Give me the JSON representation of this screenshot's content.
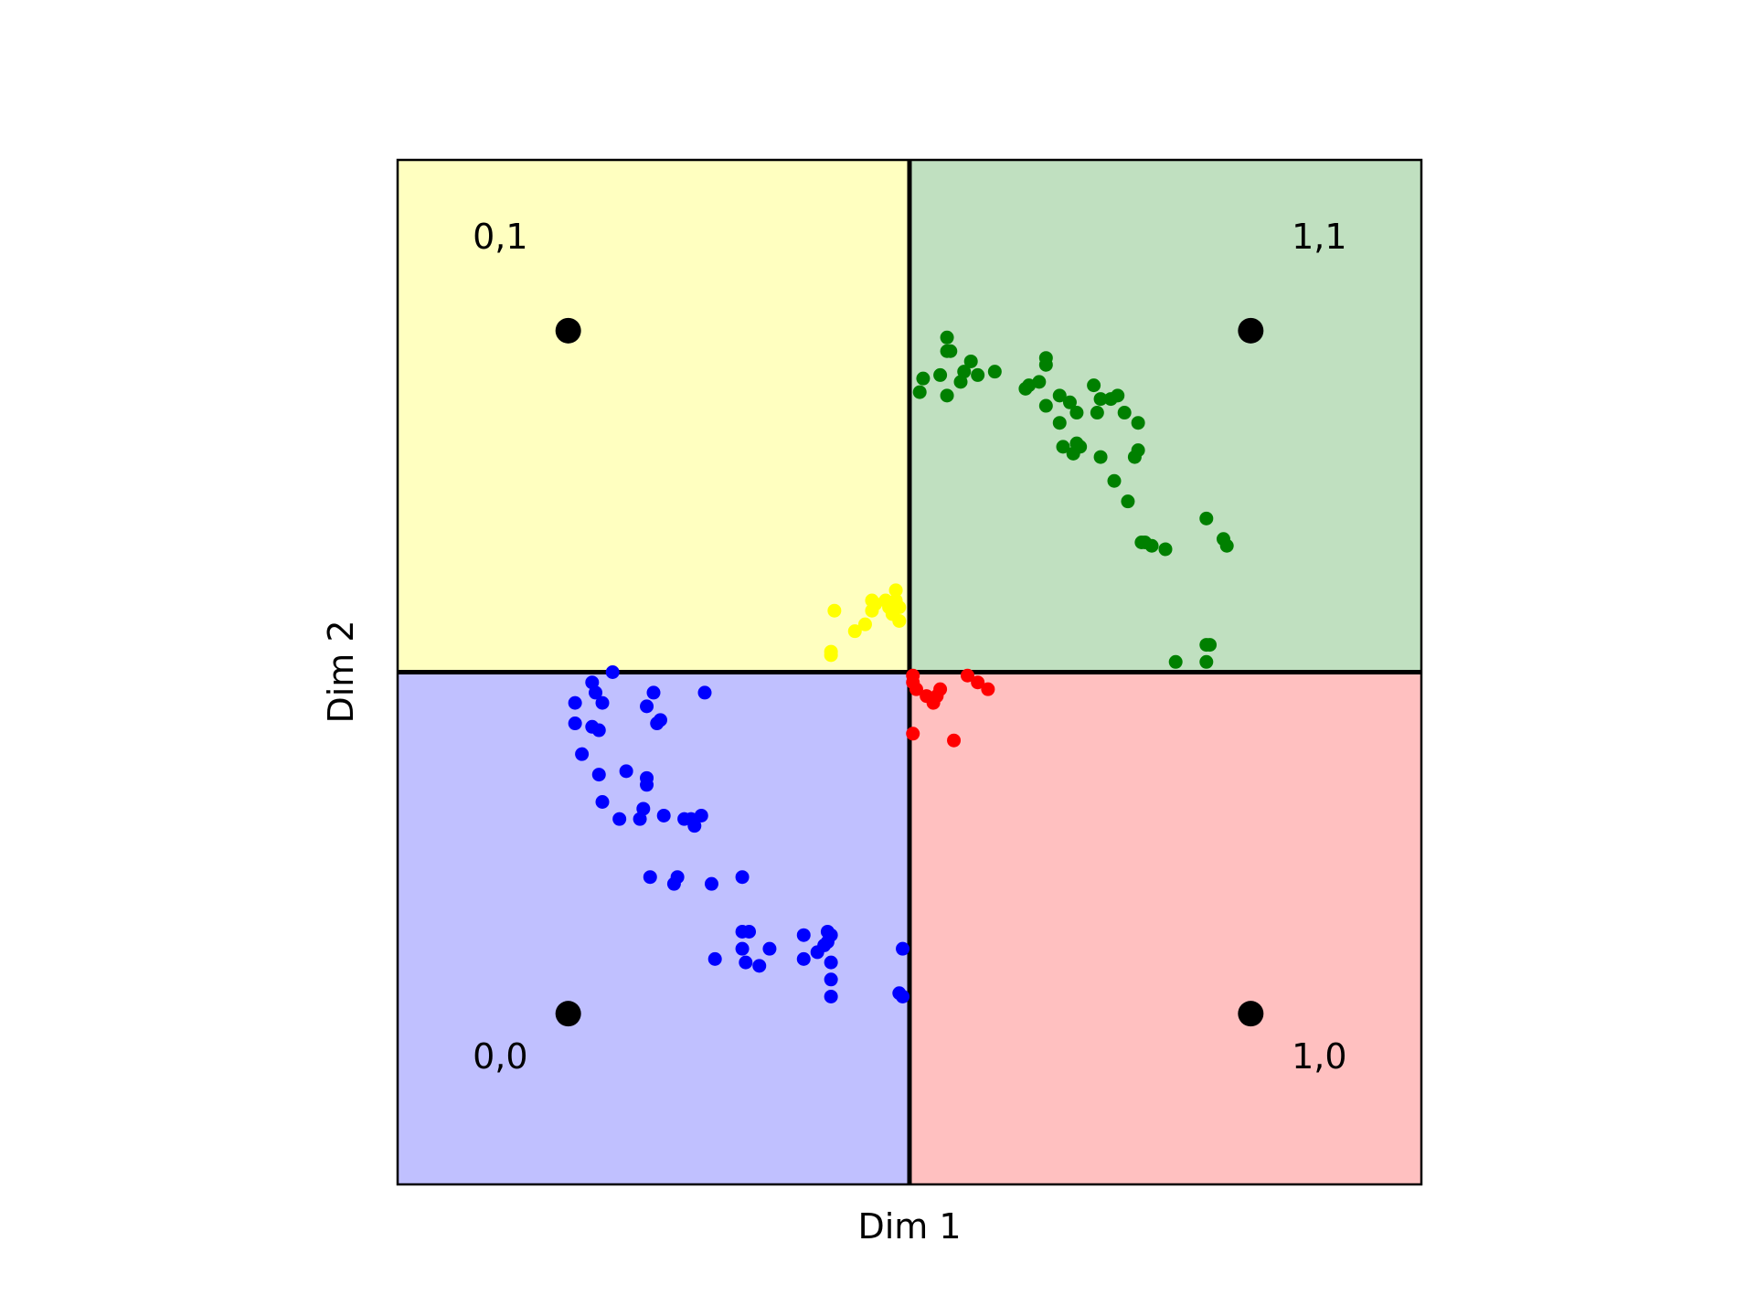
{
  "chart_data": {
    "type": "scatter",
    "title": "",
    "xlabel": "Dim 1",
    "ylabel": "Dim 2",
    "xlim": [
      -0.25,
      1.25
    ],
    "ylim": [
      -0.25,
      1.25
    ],
    "grid": false,
    "legend": "none",
    "regions": [
      {
        "label": "0,1",
        "x": [
          -0.25,
          0.5
        ],
        "y": [
          0.5,
          1.25
        ],
        "color": "#ffffc0"
      },
      {
        "label": "1,1",
        "x": [
          0.5,
          1.25
        ],
        "y": [
          0.5,
          1.25
        ],
        "color": "#c0e0c0"
      },
      {
        "label": "0,0",
        "x": [
          -0.25,
          0.5
        ],
        "y": [
          -0.25,
          0.5
        ],
        "color": "#c0c0ff"
      },
      {
        "label": "1,0",
        "x": [
          0.5,
          1.25
        ],
        "y": [
          -0.25,
          0.5
        ],
        "color": "#ffc0c0"
      }
    ],
    "region_labels": [
      {
        "text": "0,1",
        "x": -0.14,
        "y": 1.12
      },
      {
        "text": "1,1",
        "x": 1.06,
        "y": 1.12
      },
      {
        "text": "0,0",
        "x": -0.14,
        "y": -0.08
      },
      {
        "text": "1,0",
        "x": 1.06,
        "y": -0.08
      }
    ],
    "corner_points": [
      {
        "x": 0,
        "y": 0
      },
      {
        "x": 0,
        "y": 1
      },
      {
        "x": 1,
        "y": 0
      },
      {
        "x": 1,
        "y": 1
      }
    ],
    "divider_lines": {
      "x": 0.5,
      "y": 0.5,
      "color": "#000000"
    },
    "series": [
      {
        "color": "#008000",
        "points": [
          [
            0.555,
            0.99
          ],
          [
            0.56,
            0.97
          ],
          [
            0.52,
            0.93
          ],
          [
            0.515,
            0.91
          ],
          [
            0.545,
            0.935
          ],
          [
            0.555,
            0.97
          ],
          [
            0.59,
            0.955
          ],
          [
            0.6,
            0.935
          ],
          [
            0.575,
            0.925
          ],
          [
            0.58,
            0.94
          ],
          [
            0.555,
            0.905
          ],
          [
            0.625,
            0.94
          ],
          [
            0.7,
            0.96
          ],
          [
            0.7,
            0.95
          ],
          [
            0.67,
            0.915
          ],
          [
            0.675,
            0.92
          ],
          [
            0.69,
            0.925
          ],
          [
            0.72,
            0.905
          ],
          [
            0.7,
            0.89
          ],
          [
            0.735,
            0.895
          ],
          [
            0.745,
            0.88
          ],
          [
            0.77,
            0.92
          ],
          [
            0.78,
            0.9
          ],
          [
            0.795,
            0.9
          ],
          [
            0.805,
            0.905
          ],
          [
            0.775,
            0.88
          ],
          [
            0.815,
            0.88
          ],
          [
            0.835,
            0.865
          ],
          [
            0.72,
            0.865
          ],
          [
            0.745,
            0.835
          ],
          [
            0.75,
            0.83
          ],
          [
            0.725,
            0.83
          ],
          [
            0.74,
            0.82
          ],
          [
            0.78,
            0.815
          ],
          [
            0.8,
            0.78
          ],
          [
            0.83,
            0.815
          ],
          [
            0.835,
            0.825
          ],
          [
            0.82,
            0.75
          ],
          [
            0.845,
            0.69
          ],
          [
            0.84,
            0.69
          ],
          [
            0.855,
            0.685
          ],
          [
            0.875,
            0.68
          ],
          [
            0.935,
            0.725
          ],
          [
            0.96,
            0.695
          ],
          [
            0.965,
            0.685
          ],
          [
            0.935,
            0.54
          ],
          [
            0.94,
            0.54
          ],
          [
            0.935,
            0.515
          ],
          [
            0.89,
            0.515
          ]
        ]
      },
      {
        "color": "#ffff00",
        "points": [
          [
            0.48,
            0.62
          ],
          [
            0.48,
            0.605
          ],
          [
            0.485,
            0.595
          ],
          [
            0.485,
            0.575
          ],
          [
            0.465,
            0.605
          ],
          [
            0.47,
            0.595
          ],
          [
            0.445,
            0.605
          ],
          [
            0.45,
            0.6
          ],
          [
            0.445,
            0.59
          ],
          [
            0.435,
            0.57
          ],
          [
            0.42,
            0.56
          ],
          [
            0.39,
            0.59
          ],
          [
            0.385,
            0.53
          ],
          [
            0.385,
            0.525
          ],
          [
            0.475,
            0.585
          ]
        ]
      },
      {
        "color": "#ff0000",
        "points": [
          [
            0.505,
            0.495
          ],
          [
            0.505,
            0.485
          ],
          [
            0.51,
            0.475
          ],
          [
            0.525,
            0.465
          ],
          [
            0.535,
            0.455
          ],
          [
            0.54,
            0.465
          ],
          [
            0.545,
            0.475
          ],
          [
            0.585,
            0.495
          ],
          [
            0.6,
            0.485
          ],
          [
            0.615,
            0.475
          ],
          [
            0.505,
            0.41
          ],
          [
            0.565,
            0.4
          ]
        ]
      },
      {
        "color": "#0000ff",
        "points": [
          [
            0.065,
            0.5
          ],
          [
            0.035,
            0.485
          ],
          [
            0.04,
            0.47
          ],
          [
            0.01,
            0.455
          ],
          [
            0.05,
            0.455
          ],
          [
            0.01,
            0.425
          ],
          [
            0.035,
            0.42
          ],
          [
            0.045,
            0.415
          ],
          [
            0.125,
            0.47
          ],
          [
            0.135,
            0.43
          ],
          [
            0.13,
            0.425
          ],
          [
            0.115,
            0.45
          ],
          [
            0.02,
            0.38
          ],
          [
            0.045,
            0.35
          ],
          [
            0.085,
            0.355
          ],
          [
            0.115,
            0.345
          ],
          [
            0.115,
            0.335
          ],
          [
            0.05,
            0.31
          ],
          [
            0.075,
            0.285
          ],
          [
            0.11,
            0.3
          ],
          [
            0.105,
            0.285
          ],
          [
            0.14,
            0.29
          ],
          [
            0.17,
            0.285
          ],
          [
            0.18,
            0.285
          ],
          [
            0.195,
            0.29
          ],
          [
            0.185,
            0.275
          ],
          [
            0.12,
            0.2
          ],
          [
            0.155,
            0.19
          ],
          [
            0.16,
            0.2
          ],
          [
            0.21,
            0.19
          ],
          [
            0.255,
            0.2
          ],
          [
            0.255,
            0.12
          ],
          [
            0.265,
            0.12
          ],
          [
            0.255,
            0.095
          ],
          [
            0.295,
            0.095
          ],
          [
            0.345,
            0.115
          ],
          [
            0.38,
            0.105
          ],
          [
            0.38,
            0.12
          ],
          [
            0.385,
            0.115
          ],
          [
            0.375,
            0.1
          ],
          [
            0.365,
            0.09
          ],
          [
            0.345,
            0.08
          ],
          [
            0.385,
            0.075
          ],
          [
            0.215,
            0.08
          ],
          [
            0.26,
            0.075
          ],
          [
            0.28,
            0.07
          ],
          [
            0.385,
            0.05
          ],
          [
            0.385,
            0.025
          ],
          [
            0.49,
            0.095
          ],
          [
            0.485,
            0.03
          ],
          [
            0.49,
            0.025
          ],
          [
            0.2,
            0.47
          ]
        ]
      }
    ]
  }
}
